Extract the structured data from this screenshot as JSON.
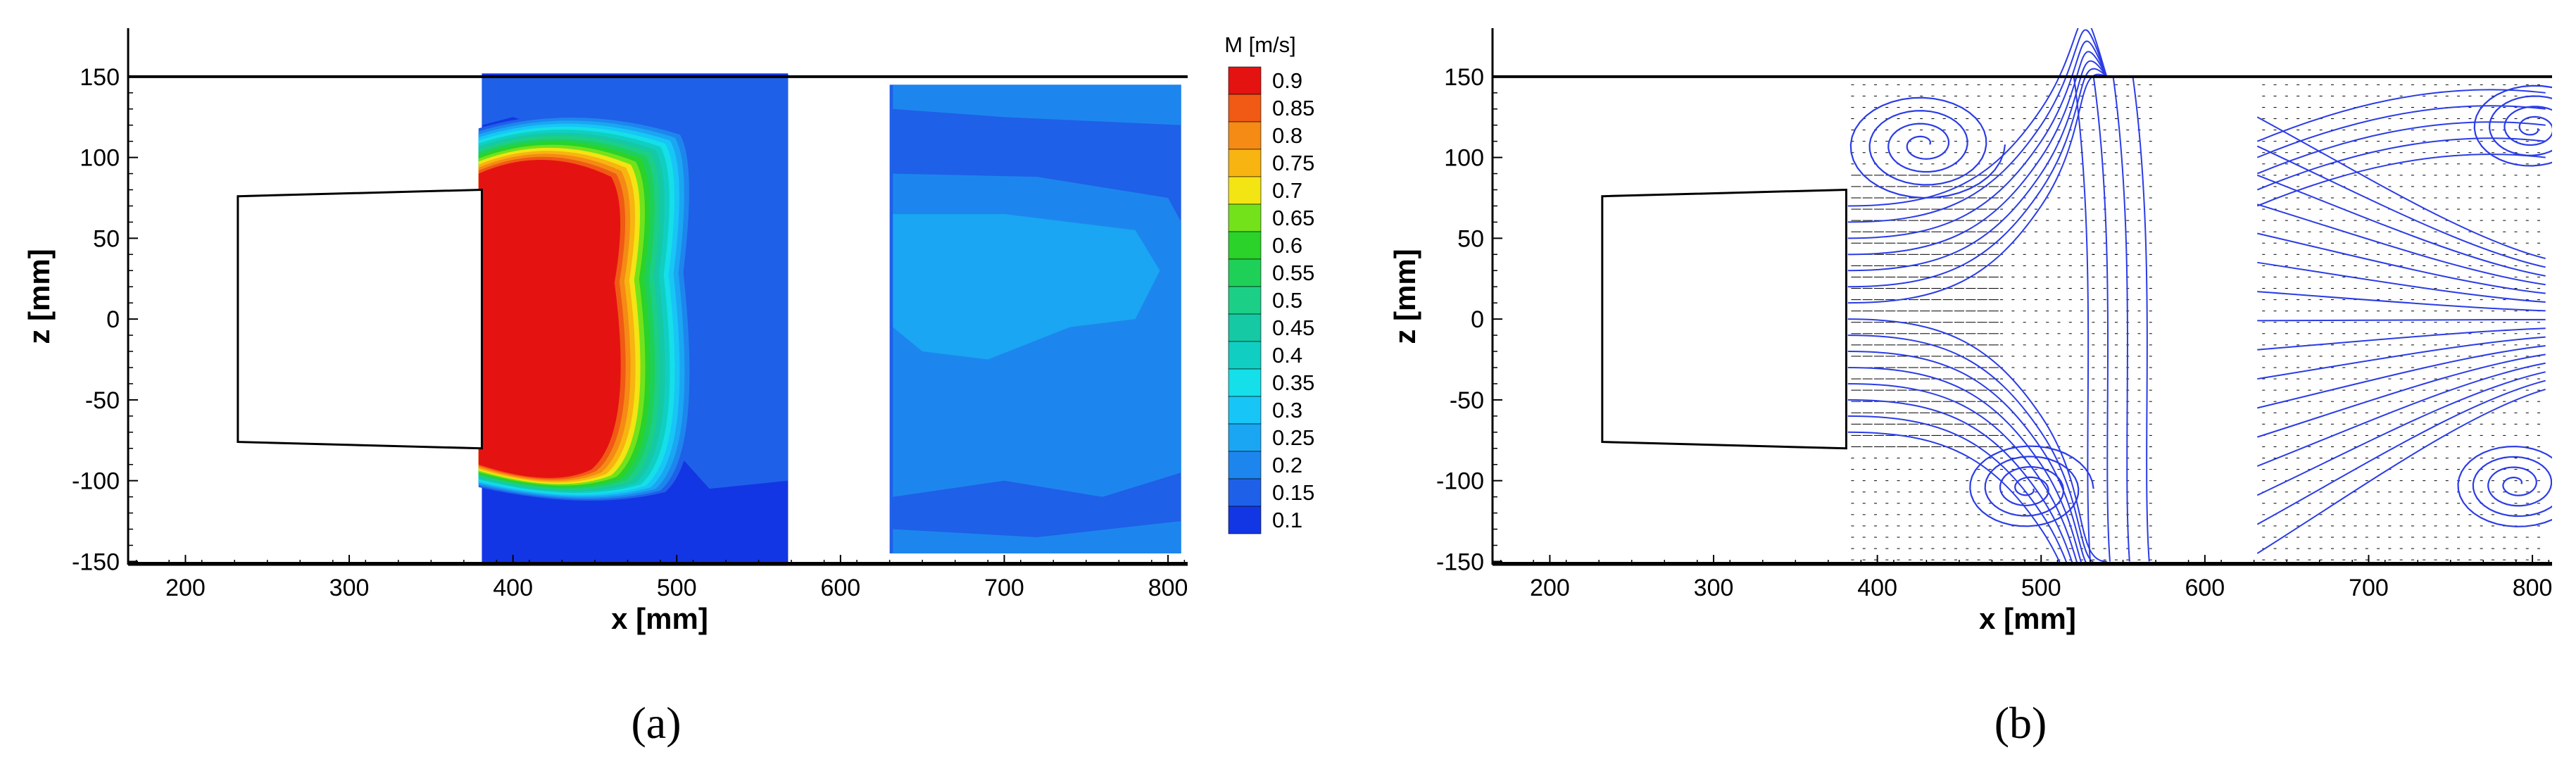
{
  "chart_data": [
    {
      "type": "heatmap",
      "panel_label": "(a)",
      "xlabel": "x [mm]",
      "ylabel": "z [mm]",
      "xlim": [
        165,
        812
      ],
      "ylim": [
        -152,
        180
      ],
      "xticks": [
        200,
        300,
        400,
        500,
        600,
        700,
        800
      ],
      "yticks": [
        150,
        100,
        50,
        0,
        -50,
        -100,
        -150
      ],
      "colorbar": {
        "title": "M [m/s]",
        "levels": [
          0.9,
          0.85,
          0.8,
          0.75,
          0.7,
          0.65,
          0.6,
          0.55,
          0.5,
          0.45,
          0.4,
          0.35,
          0.3,
          0.25,
          0.2,
          0.15,
          0.1
        ],
        "colors": [
          "#e51212",
          "#f05a14",
          "#f58a14",
          "#f8b410",
          "#f3e413",
          "#74e21a",
          "#2ad22a",
          "#1fd058",
          "#1ccf87",
          "#14c9a4",
          "#10cfc2",
          "#15dfe8",
          "#17c6f6",
          "#1aa6f2",
          "#1d86ee",
          "#1f60e8",
          "#1336e4"
        ]
      },
      "wall_z": 150,
      "model_outline": [
        [
          232,
          76
        ],
        [
          381,
          80
        ],
        [
          381,
          -80
        ],
        [
          232,
          -76
        ]
      ],
      "regions": [
        {
          "x": [
            381,
            568
          ],
          "z": [
            -152,
            152
          ],
          "background": 0.1
        },
        {
          "x": [
            630,
            808
          ],
          "z": [
            -145,
            145
          ],
          "background": 0.15
        }
      ],
      "high_velocity_core": {
        "x": [
          381,
          470
        ],
        "z": [
          -95,
          100
        ],
        "peak": 0.9,
        "edge": 0.15
      }
    },
    {
      "type": "scatter",
      "panel_label": "(b)",
      "xlabel": "x [mm]",
      "ylabel": "z [mm]",
      "xlim": [
        165,
        812
      ],
      "ylim": [
        -152,
        180
      ],
      "xticks": [
        200,
        300,
        400,
        500,
        600,
        700,
        800
      ],
      "yticks": [
        150,
        100,
        50,
        0,
        -50,
        -100,
        -150
      ],
      "wall_z": 150,
      "model_outline": [
        [
          232,
          76
        ],
        [
          381,
          80
        ],
        [
          381,
          -80
        ],
        [
          232,
          -76
        ]
      ],
      "vector_regions": [
        {
          "x": [
            381,
            570
          ],
          "z": [
            -152,
            150
          ]
        },
        {
          "x": [
            632,
            808
          ],
          "z": [
            -152,
            150
          ]
        }
      ],
      "streamline_color": "#2b3ce6",
      "vortex_centers": [
        {
          "x": 428,
          "z": 108
        },
        {
          "x": 492,
          "z": -105
        },
        {
          "x": 790,
          "z": -102
        },
        {
          "x": 800,
          "z": 118
        }
      ]
    }
  ]
}
